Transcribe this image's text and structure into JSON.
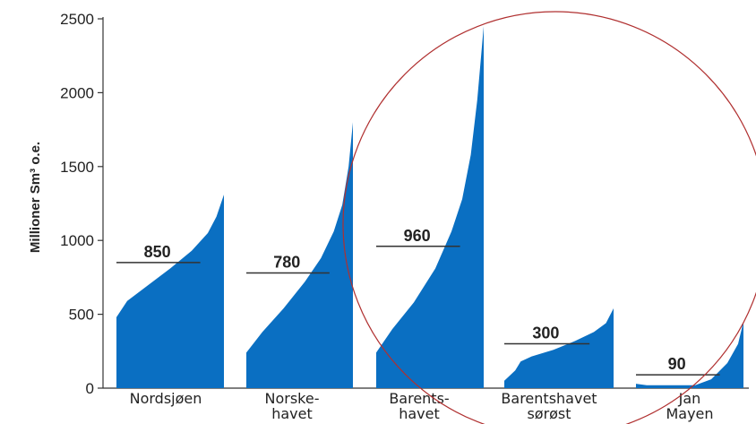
{
  "chart_data": {
    "type": "area",
    "title": "",
    "xlabel": "",
    "ylabel": "Millioner Sm³ o.e.",
    "ylim": [
      0,
      2500
    ],
    "yticks": [
      "0",
      "500",
      "1000",
      "1500",
      "2000",
      "2500"
    ],
    "grid": false,
    "color": "#0a6fc2",
    "categories": [
      {
        "lines": [
          "Nordsjøen"
        ]
      },
      {
        "lines": [
          "Norske-",
          "havet"
        ]
      },
      {
        "lines": [
          "Barents-",
          "havet"
        ]
      },
      {
        "lines": [
          "Barentshavet",
          "sørøst"
        ]
      },
      {
        "lines": [
          "Jan",
          "Mayen"
        ]
      }
    ],
    "series": [
      {
        "expected": 850,
        "label": "850",
        "curve": [
          [
            0,
            480
          ],
          [
            0.1,
            590
          ],
          [
            0.3,
            700
          ],
          [
            0.5,
            810
          ],
          [
            0.7,
            930
          ],
          [
            0.85,
            1050
          ],
          [
            0.93,
            1160
          ],
          [
            1,
            1310
          ]
        ]
      },
      {
        "expected": 780,
        "label": "780",
        "curve": [
          [
            0,
            240
          ],
          [
            0.15,
            380
          ],
          [
            0.35,
            540
          ],
          [
            0.55,
            720
          ],
          [
            0.7,
            880
          ],
          [
            0.82,
            1060
          ],
          [
            0.9,
            1240
          ],
          [
            0.96,
            1500
          ],
          [
            1,
            1800
          ]
        ]
      },
      {
        "expected": 960,
        "label": "960",
        "curve": [
          [
            0,
            240
          ],
          [
            0.15,
            400
          ],
          [
            0.35,
            580
          ],
          [
            0.55,
            810
          ],
          [
            0.7,
            1060
          ],
          [
            0.8,
            1280
          ],
          [
            0.88,
            1580
          ],
          [
            0.94,
            1950
          ],
          [
            1,
            2450
          ]
        ]
      },
      {
        "expected": 300,
        "label": "300",
        "curve": [
          [
            0,
            50
          ],
          [
            0.1,
            120
          ],
          [
            0.15,
            180
          ],
          [
            0.25,
            215
          ],
          [
            0.45,
            260
          ],
          [
            0.65,
            320
          ],
          [
            0.82,
            380
          ],
          [
            0.93,
            440
          ],
          [
            1,
            540
          ]
        ]
      },
      {
        "expected": 90,
        "label": "90",
        "curve": [
          [
            0,
            30
          ],
          [
            0.1,
            20
          ],
          [
            0.55,
            20
          ],
          [
            0.7,
            60
          ],
          [
            0.85,
            170
          ],
          [
            0.95,
            300
          ],
          [
            1,
            450
          ]
        ]
      }
    ]
  }
}
